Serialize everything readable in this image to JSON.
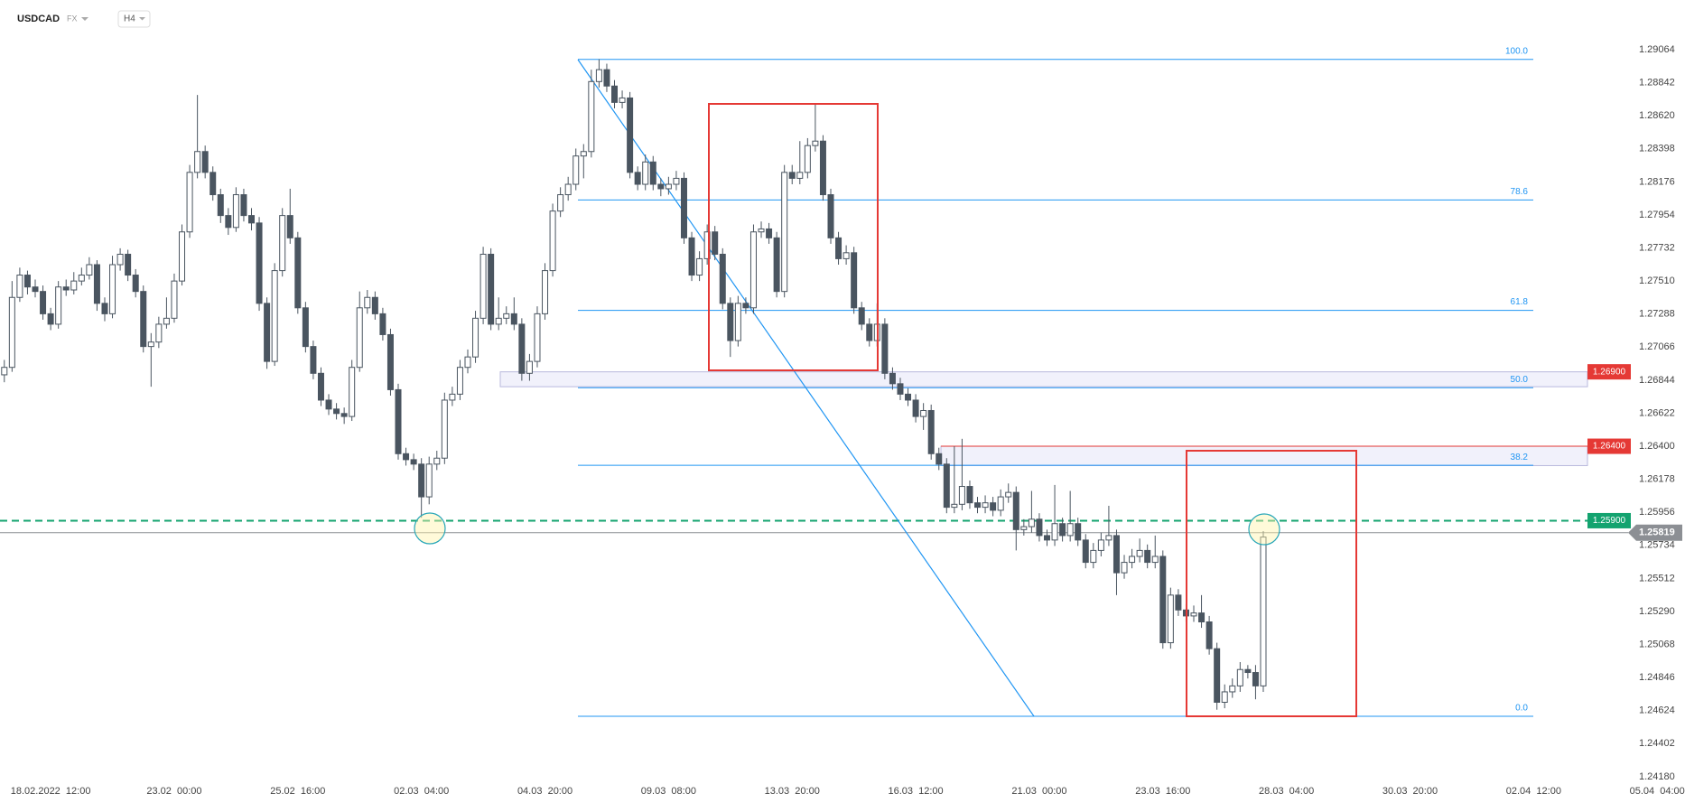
{
  "header": {
    "symbol": "USDCAD",
    "market": "FX",
    "timeframe": "H4"
  },
  "chart_data": {
    "type": "candlestick",
    "up_color": "#ffffff",
    "down_color": "#4a5560",
    "open": [
      1.2688,
      1.2693,
      1.274,
      1.2755,
      1.2747,
      1.2744,
      1.2729,
      1.2722,
      1.2747,
      1.2745,
      1.2751,
      1.2755,
      1.2762,
      1.2736,
      1.2729,
      1.2762,
      1.2769,
      1.2755,
      1.2744,
      1.2707,
      1.271,
      1.2722,
      1.2726,
      1.2751,
      1.2784,
      1.2824,
      1.2838,
      1.2824,
      1.2809,
      1.2795,
      1.2787,
      1.2809,
      1.2795,
      1.279,
      1.2736,
      1.2697,
      1.2758,
      1.2795,
      1.278,
      1.2733,
      1.2707,
      1.2689,
      1.2671,
      1.2665,
      1.2662,
      1.266,
      1.2693,
      1.2733,
      1.274,
      1.2729,
      1.2715,
      1.2678,
      1.2635,
      1.2631,
      1.2628,
      1.2606,
      1.2628,
      1.2632,
      1.2671,
      1.2675,
      1.2693,
      1.27,
      1.2726,
      1.2769,
      1.2722,
      1.2726,
      1.2729,
      1.2722,
      1.2689,
      1.2697,
      1.2729,
      1.2758,
      1.2798,
      1.2809,
      1.2816,
      1.2835,
      1.2838,
      1.2885,
      1.2893,
      1.2882,
      1.2871,
      1.2874,
      1.2824,
      1.2816,
      1.2831,
      1.2816,
      1.2813,
      1.2816,
      1.282,
      1.278,
      1.2755,
      1.2766,
      1.2784,
      1.2769,
      1.2736,
      1.2711,
      1.2736,
      1.2733,
      1.2784,
      1.2786,
      1.278,
      1.2744,
      1.2824,
      1.282,
      1.2824,
      1.2842,
      1.2845,
      1.2809,
      1.278,
      1.2766,
      1.277,
      1.2733,
      1.2722,
      1.2711,
      1.2722,
      1.2689,
      1.2682,
      1.2675,
      1.2671,
      1.266,
      1.2664,
      1.2635,
      1.2628,
      1.2599,
      1.2601,
      1.2613,
      1.2602,
      1.2599,
      1.2602,
      1.2597,
      1.2606,
      1.2609,
      1.2584,
      1.2586,
      1.2591,
      1.258,
      1.2577,
      1.2588,
      1.258,
      1.2588,
      1.2577,
      1.2562,
      1.257,
      1.2577,
      1.258,
      1.2555,
      1.2562,
      1.2566,
      1.257,
      1.2562,
      1.2566,
      1.2508,
      1.254,
      1.253,
      1.2526,
      1.2528,
      1.2522,
      1.2504,
      1.2468,
      1.2475,
      1.2479,
      1.249,
      1.2488,
      1.2479
    ],
    "high": [
      1.2698,
      1.2751,
      1.276,
      1.2758,
      1.2752,
      1.2748,
      1.2733,
      1.2751,
      1.2752,
      1.2757,
      1.276,
      1.2767,
      1.2765,
      1.274,
      1.2768,
      1.2773,
      1.2772,
      1.2759,
      1.2748,
      1.2716,
      1.2727,
      1.274,
      1.2756,
      1.2789,
      1.2829,
      1.2876,
      1.2842,
      1.2828,
      1.2813,
      1.28,
      1.2814,
      1.2813,
      1.28,
      1.2794,
      1.274,
      1.2763,
      1.28,
      1.2813,
      1.2784,
      1.2737,
      1.2711,
      1.2693,
      1.2675,
      1.2669,
      1.2666,
      1.2698,
      1.2744,
      1.2745,
      1.2744,
      1.2733,
      1.2719,
      1.2682,
      1.2639,
      1.2635,
      1.2632,
      1.2633,
      1.2637,
      1.2676,
      1.268,
      1.2698,
      1.2705,
      1.2731,
      1.2774,
      1.2773,
      1.274,
      1.2734,
      1.274,
      1.2726,
      1.2702,
      1.2734,
      1.2763,
      1.2803,
      1.2814,
      1.2821,
      1.284,
      1.2843,
      1.2893,
      1.29,
      1.2897,
      1.2886,
      1.2879,
      1.2878,
      1.2828,
      1.2836,
      1.2835,
      1.282,
      1.2821,
      1.2825,
      1.2824,
      1.2784,
      1.2771,
      1.2789,
      1.2788,
      1.2773,
      1.274,
      1.2741,
      1.274,
      1.2789,
      1.2791,
      1.279,
      1.2784,
      1.2829,
      1.2829,
      1.2845,
      1.2847,
      1.287,
      1.2849,
      1.2813,
      1.2784,
      1.2775,
      1.2774,
      1.2737,
      1.2726,
      1.2736,
      1.2726,
      1.2693,
      1.2686,
      1.2679,
      1.2675,
      1.2669,
      1.2668,
      1.2639,
      1.2632,
      1.264,
      1.2645,
      1.2617,
      1.2606,
      1.2607,
      1.2606,
      1.2611,
      1.2615,
      1.2613,
      1.2591,
      1.261,
      1.2595,
      1.2584,
      1.2614,
      1.2592,
      1.261,
      1.2592,
      1.2581,
      1.2575,
      1.2582,
      1.26,
      1.2584,
      1.2567,
      1.2571,
      1.2578,
      1.2574,
      1.258,
      1.257,
      1.2545,
      1.2544,
      1.2534,
      1.2533,
      1.254,
      1.2526,
      1.2508,
      1.248,
      1.2484,
      1.2495,
      1.2493,
      1.2493,
      1.2583
    ],
    "low": [
      1.2683,
      1.269,
      1.2737,
      1.2742,
      1.274,
      1.2725,
      1.2718,
      1.2719,
      1.2741,
      1.2742,
      1.2748,
      1.2752,
      1.2731,
      1.2724,
      1.2726,
      1.2758,
      1.2751,
      1.274,
      1.2703,
      1.268,
      1.2706,
      1.2719,
      1.2723,
      1.2748,
      1.278,
      1.282,
      1.282,
      1.2805,
      1.279,
      1.2782,
      1.2784,
      1.2791,
      1.2785,
      1.2731,
      1.2692,
      1.2694,
      1.2754,
      1.2776,
      1.2729,
      1.2703,
      1.2685,
      1.2667,
      1.2661,
      1.2658,
      1.2655,
      1.2657,
      1.269,
      1.2729,
      1.2725,
      1.2711,
      1.2674,
      1.2631,
      1.2627,
      1.2624,
      1.2592,
      1.2601,
      1.2624,
      1.2628,
      1.2667,
      1.2671,
      1.2689,
      1.2696,
      1.2722,
      1.2718,
      1.2718,
      1.2722,
      1.2718,
      1.2684,
      1.2684,
      1.2693,
      1.2725,
      1.2754,
      1.2794,
      1.2805,
      1.2812,
      1.282,
      1.2834,
      1.2881,
      1.2878,
      1.2867,
      1.2867,
      1.282,
      1.2812,
      1.2812,
      1.2812,
      1.2808,
      1.2809,
      1.2812,
      1.2776,
      1.2751,
      1.2751,
      1.2762,
      1.2765,
      1.2732,
      1.27,
      1.2707,
      1.2729,
      1.2729,
      1.278,
      1.2776,
      1.274,
      1.274,
      1.2816,
      1.2816,
      1.282,
      1.2838,
      1.2805,
      1.2776,
      1.2762,
      1.2762,
      1.2729,
      1.2718,
      1.2707,
      1.2707,
      1.2685,
      1.2678,
      1.2671,
      1.2667,
      1.2656,
      1.2651,
      1.2631,
      1.2624,
      1.2595,
      1.2595,
      1.2597,
      1.2598,
      1.2595,
      1.2595,
      1.2593,
      1.2593,
      1.2602,
      1.257,
      1.258,
      1.2582,
      1.2576,
      1.2573,
      1.2573,
      1.2576,
      1.2576,
      1.2573,
      1.2558,
      1.2558,
      1.2566,
      1.2573,
      1.254,
      1.2551,
      1.2558,
      1.2562,
      1.2558,
      1.2558,
      1.2504,
      1.2504,
      1.2526,
      1.2522,
      1.2522,
      1.2518,
      1.25,
      1.2463,
      1.2464,
      1.2471,
      1.2475,
      1.2484,
      1.247,
      1.2475
    ],
    "close": [
      1.2693,
      1.274,
      1.2755,
      1.2747,
      1.2744,
      1.2729,
      1.2722,
      1.2747,
      1.2745,
      1.2751,
      1.2755,
      1.2762,
      1.2736,
      1.2729,
      1.2762,
      1.2769,
      1.2755,
      1.2744,
      1.2707,
      1.271,
      1.2722,
      1.2726,
      1.2751,
      1.2784,
      1.2824,
      1.2838,
      1.2824,
      1.2809,
      1.2795,
      1.2787,
      1.2809,
      1.2795,
      1.279,
      1.2736,
      1.2697,
      1.2758,
      1.2795,
      1.278,
      1.2733,
      1.2707,
      1.2689,
      1.2671,
      1.2665,
      1.2662,
      1.266,
      1.2693,
      1.2733,
      1.274,
      1.2729,
      1.2715,
      1.2678,
      1.2635,
      1.2631,
      1.2628,
      1.2606,
      1.2628,
      1.2632,
      1.2671,
      1.2675,
      1.2693,
      1.27,
      1.2726,
      1.2769,
      1.2722,
      1.2726,
      1.2729,
      1.2722,
      1.2689,
      1.2697,
      1.2729,
      1.2758,
      1.2798,
      1.2809,
      1.2816,
      1.2835,
      1.2838,
      1.2885,
      1.2893,
      1.2882,
      1.2871,
      1.2874,
      1.2824,
      1.2816,
      1.2831,
      1.2816,
      1.2813,
      1.2816,
      1.282,
      1.278,
      1.2755,
      1.2766,
      1.2784,
      1.2769,
      1.2736,
      1.2711,
      1.2736,
      1.2733,
      1.2784,
      1.2786,
      1.278,
      1.2744,
      1.2824,
      1.282,
      1.2824,
      1.2842,
      1.2845,
      1.2809,
      1.278,
      1.2766,
      1.277,
      1.2733,
      1.2722,
      1.2711,
      1.2722,
      1.2689,
      1.2682,
      1.2675,
      1.2671,
      1.266,
      1.2664,
      1.2635,
      1.2628,
      1.2599,
      1.2601,
      1.2613,
      1.2602,
      1.2599,
      1.2602,
      1.2597,
      1.2606,
      1.2609,
      1.2584,
      1.2586,
      1.2591,
      1.258,
      1.2577,
      1.2588,
      1.258,
      1.2588,
      1.2577,
      1.2562,
      1.257,
      1.2577,
      1.258,
      1.2555,
      1.2562,
      1.2566,
      1.257,
      1.2562,
      1.2566,
      1.2508,
      1.254,
      1.253,
      1.2526,
      1.2528,
      1.2522,
      1.2504,
      1.2468,
      1.2475,
      1.2479,
      1.249,
      1.2488,
      1.2479,
      1.2579
    ],
    "xlim": [
      -0.56,
      217.6
    ],
    "xticks": [
      {
        "value": 6,
        "label": "18.02.2022  12:00"
      },
      {
        "value": 22,
        "label": "23.02  00:00"
      },
      {
        "value": 38,
        "label": "25.02  16:00"
      },
      {
        "value": 54,
        "label": "02.03  04:00"
      },
      {
        "value": 70,
        "label": "04.03  20:00"
      },
      {
        "value": 86,
        "label": "09.03  08:00"
      },
      {
        "value": 102,
        "label": "13.03  20:00"
      },
      {
        "value": 118,
        "label": "16.03  12:00"
      },
      {
        "value": 134,
        "label": "21.03  00:00"
      },
      {
        "value": 150,
        "label": "23.03  16:00"
      },
      {
        "value": 166,
        "label": "28.03  04:00"
      },
      {
        "value": 182,
        "label": "30.03  20:00"
      },
      {
        "value": 198,
        "label": "02.04  12:00"
      },
      {
        "value": 214,
        "label": "05.04  04:00"
      }
    ],
    "ylim": [
      1.24064,
      1.29398
    ],
    "yticks": [
      {
        "value": 1.29064,
        "label": "1.29064"
      },
      {
        "value": 1.28842,
        "label": "1.28842"
      },
      {
        "value": 1.2862,
        "label": "1.28620"
      },
      {
        "value": 1.28398,
        "label": "1.28398"
      },
      {
        "value": 1.28176,
        "label": "1.28176"
      },
      {
        "value": 1.27954,
        "label": "1.27954"
      },
      {
        "value": 1.27732,
        "label": "1.27732"
      },
      {
        "value": 1.2751,
        "label": "1.27510"
      },
      {
        "value": 1.27288,
        "label": "1.27288"
      },
      {
        "value": 1.27066,
        "label": "1.27066"
      },
      {
        "value": 1.26844,
        "label": "1.26844"
      },
      {
        "value": 1.26622,
        "label": "1.26622"
      },
      {
        "value": 1.264,
        "label": "1.26400"
      },
      {
        "value": 1.26178,
        "label": "1.26178"
      },
      {
        "value": 1.25956,
        "label": "1.25956"
      },
      {
        "value": 1.25734,
        "label": "1.25734"
      },
      {
        "value": 1.25512,
        "label": "1.25512"
      },
      {
        "value": 1.2529,
        "label": "1.25290"
      },
      {
        "value": 1.25068,
        "label": "1.25068"
      },
      {
        "value": 1.24846,
        "label": "1.24846"
      },
      {
        "value": 1.24624,
        "label": "1.24624"
      },
      {
        "value": 1.24402,
        "label": "1.24402"
      },
      {
        "value": 1.2418,
        "label": "1.24180"
      }
    ],
    "fib_labels": [
      "100.0",
      "78.6",
      "61.8",
      "50.0",
      "38.2",
      "0.0"
    ],
    "fib_prices": [
      1.28999,
      1.28055,
      1.27313,
      1.26793,
      1.26272,
      1.24586
    ],
    "fib_color": "#2196f3",
    "zones": [
      [
        1.268,
        1.269
      ],
      [
        1.2627,
        1.264
      ]
    ],
    "levels": [
      {
        "price": 1.269,
        "label": "1.26900",
        "color": "#e53935"
      },
      {
        "price": 1.264,
        "label": "1.26400",
        "color": "#e53935"
      },
      {
        "price": 1.259,
        "label": "1.25900",
        "color": "#13a36f",
        "dashed": true
      },
      {
        "price": 1.25819,
        "label": "1.25819",
        "color": "#8c8f94"
      }
    ]
  }
}
